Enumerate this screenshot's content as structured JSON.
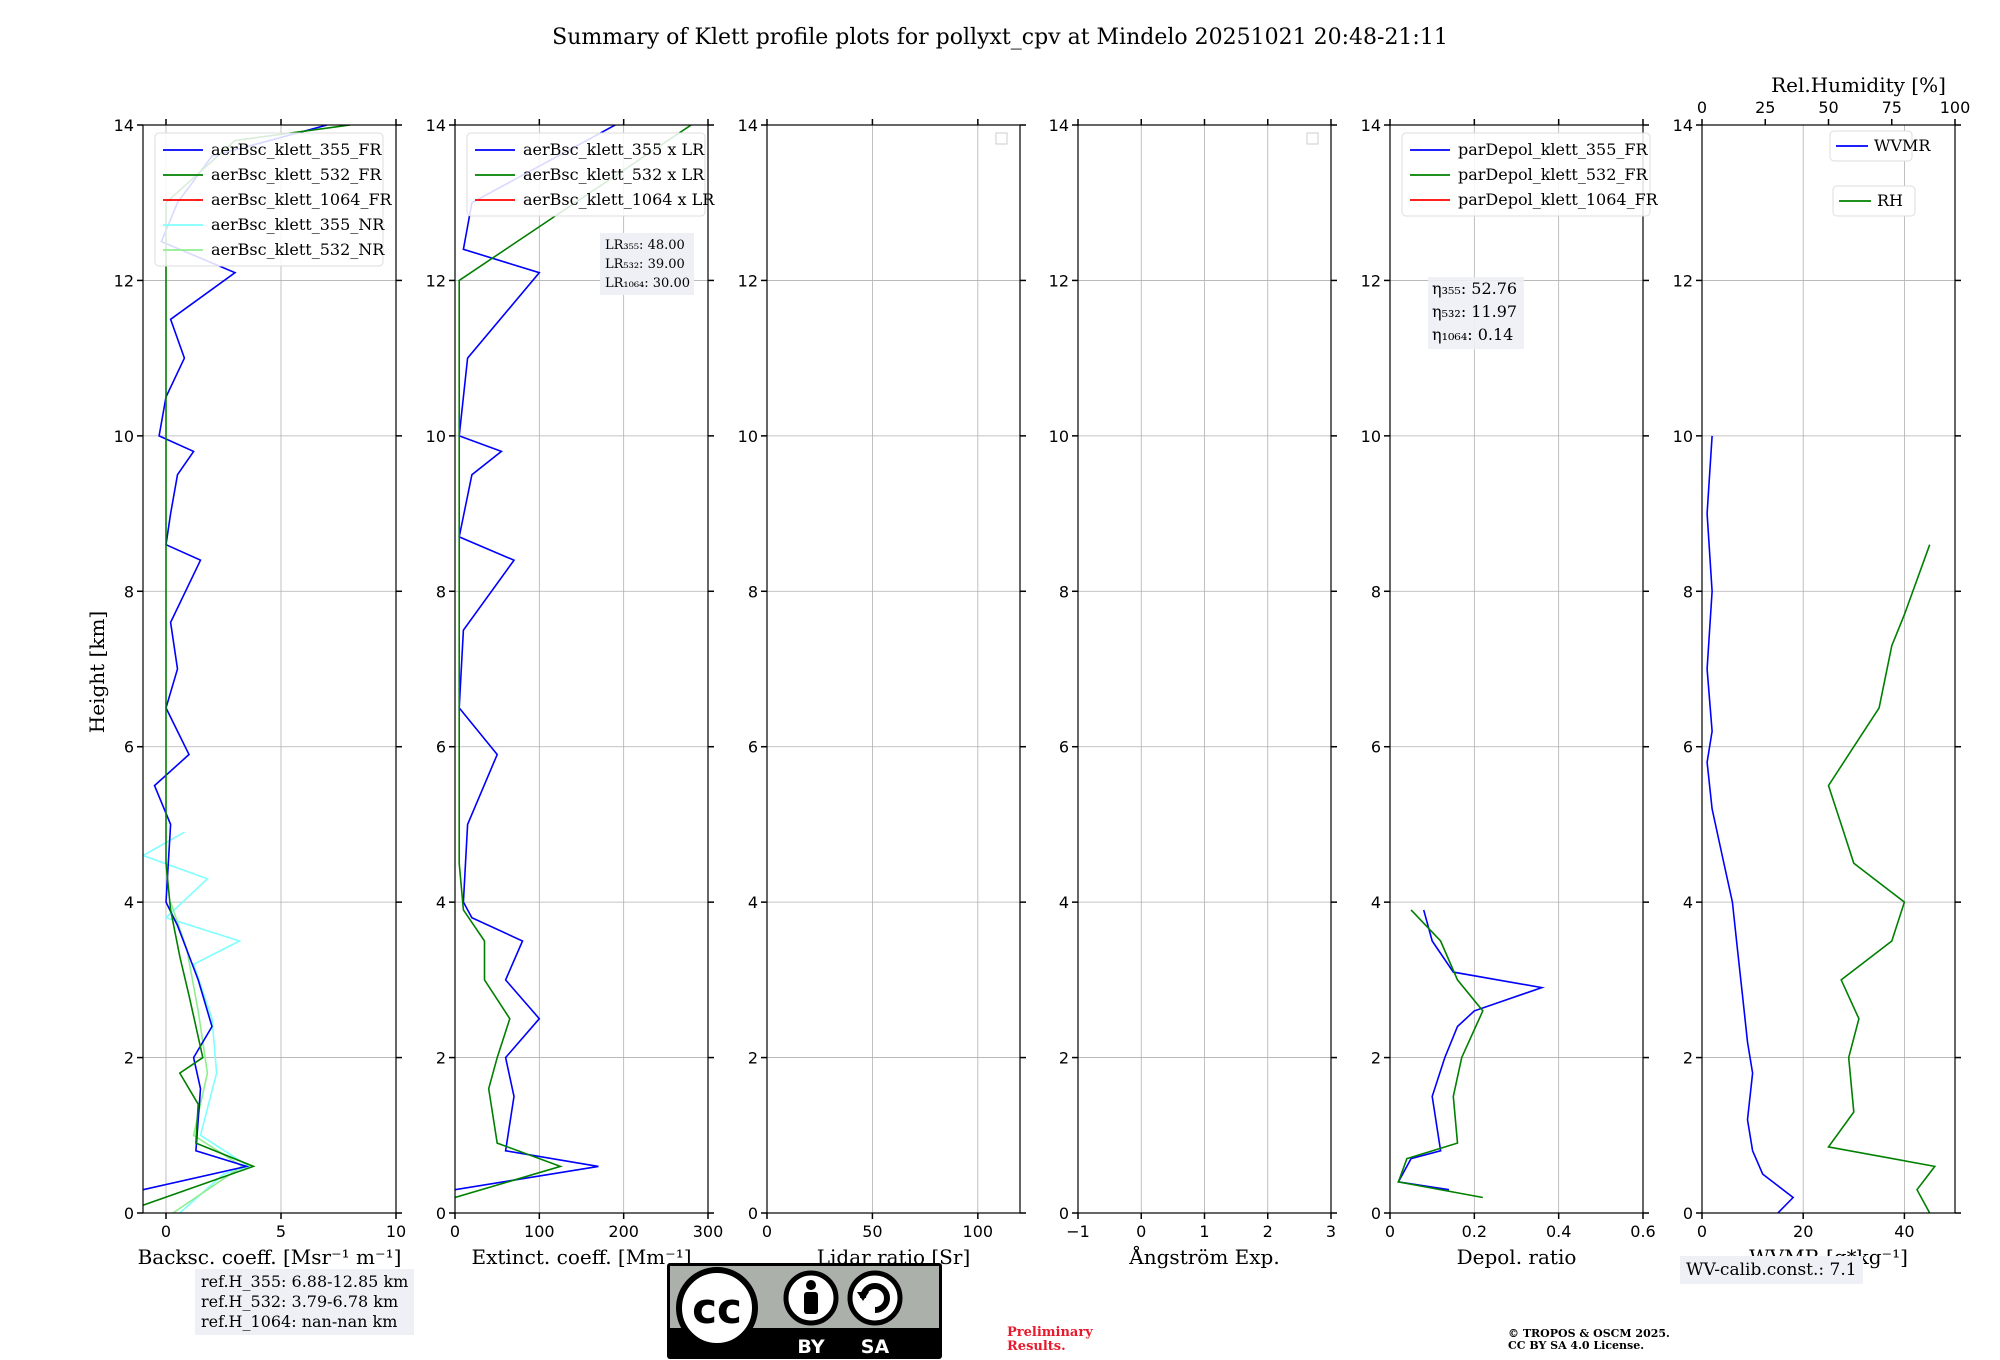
{
  "title": "Summary of Klett profile plots for pollyxt_cpv at Mindelo 20251021 20:48-21:11",
  "ylabel": "Height [km]",
  "colors": {
    "blue": "#0000ff",
    "green": "#008000",
    "red": "#ff0000",
    "cyan": "#7fffff",
    "lightgreen": "#90ee90"
  },
  "chart_data": [
    {
      "id": "backscatter",
      "type": "line",
      "xlabel": "Backsc. coeff. [Msr⁻¹ m⁻¹]",
      "xlim": [
        -1,
        10
      ],
      "ylim": [
        0,
        14
      ],
      "xticks": [
        0,
        5,
        10
      ],
      "yticks": [
        0,
        2,
        4,
        6,
        8,
        10,
        12,
        14
      ],
      "legend": [
        "aerBsc_klett_355_FR",
        "aerBsc_klett_532_FR",
        "aerBsc_klett_1064_FR",
        "aerBsc_klett_355_NR",
        "aerBsc_klett_532_NR"
      ],
      "series": [
        {
          "name": "aerBsc_klett_355_NR",
          "color": "cyan",
          "points": [
            [
              0.6,
              0.0
            ],
            [
              2.5,
              0.5
            ],
            [
              3.6,
              0.6
            ],
            [
              1.5,
              1.0
            ],
            [
              2.2,
              1.8
            ],
            [
              2.0,
              2.5
            ],
            [
              1.2,
              3.2
            ],
            [
              3.2,
              3.5
            ],
            [
              0.0,
              3.8
            ],
            [
              1.8,
              4.3
            ],
            [
              -1,
              4.6
            ],
            [
              0.8,
              4.9
            ]
          ]
        },
        {
          "name": "aerBsc_klett_532_NR",
          "color": "lightgreen",
          "points": [
            [
              0.3,
              0.0
            ],
            [
              2.3,
              0.4
            ],
            [
              3.3,
              0.6
            ],
            [
              1.2,
              1.0
            ],
            [
              1.8,
              1.8
            ],
            [
              1.4,
              2.6
            ],
            [
              0.9,
              3.4
            ],
            [
              0.2,
              4.0
            ]
          ]
        },
        {
          "name": "aerBsc_klett_355_FR",
          "color": "blue",
          "points": [
            [
              -1,
              0.3
            ],
            [
              3.5,
              0.6
            ],
            [
              1.3,
              0.8
            ],
            [
              1.5,
              1.6
            ],
            [
              1.2,
              2.0
            ],
            [
              2.0,
              2.4
            ],
            [
              1.4,
              3.0
            ],
            [
              0.5,
              3.7
            ],
            [
              0.0,
              4.0
            ],
            [
              0.2,
              5.0
            ],
            [
              -0.5,
              5.5
            ],
            [
              1.0,
              5.9
            ],
            [
              0.0,
              6.5
            ],
            [
              0.5,
              7.0
            ],
            [
              0.2,
              7.6
            ],
            [
              1.5,
              8.4
            ],
            [
              0.0,
              8.6
            ],
            [
              0.2,
              9.0
            ],
            [
              0.5,
              9.5
            ],
            [
              1.2,
              9.8
            ],
            [
              -0.3,
              10.0
            ],
            [
              0.0,
              10.5
            ],
            [
              0.8,
              11.0
            ],
            [
              0.2,
              11.5
            ],
            [
              3.0,
              12.1
            ],
            [
              -0.2,
              12.5
            ],
            [
              0.5,
              13.0
            ],
            [
              2.0,
              13.6
            ],
            [
              7.0,
              14.0
            ]
          ]
        },
        {
          "name": "aerBsc_klett_532_FR",
          "color": "green",
          "points": [
            [
              -1,
              0.1
            ],
            [
              3.8,
              0.6
            ],
            [
              1.3,
              0.9
            ],
            [
              1.4,
              1.4
            ],
            [
              0.6,
              1.8
            ],
            [
              1.6,
              2.0
            ],
            [
              1.0,
              2.8
            ],
            [
              0.6,
              3.3
            ],
            [
              0.2,
              3.9
            ],
            [
              0.0,
              4.5
            ],
            [
              0.0,
              6.0
            ],
            [
              0.0,
              8.0
            ],
            [
              0.0,
              10.0
            ],
            [
              0.0,
              12.0
            ],
            [
              0.0,
              13.0
            ],
            [
              3.0,
              13.8
            ],
            [
              8.0,
              14.0
            ]
          ]
        }
      ]
    },
    {
      "id": "extinction",
      "type": "line",
      "xlabel": "Extinct. coeff. [Mm⁻¹]",
      "xlim": [
        0,
        300
      ],
      "ylim": [
        0,
        14
      ],
      "xticks": [
        0,
        100,
        200,
        300
      ],
      "yticks": [
        0,
        2,
        4,
        6,
        8,
        10,
        12,
        14
      ],
      "legend": [
        "aerBsc_klett_355 x LR",
        "aerBsc_klett_532 x LR",
        "aerBsc_klett_1064 x LR"
      ],
      "lr_labels": [
        "LR₃₅₅: 48.00",
        "LR₅₃₂: 39.00",
        "LR₁₀₆₄: 30.00"
      ],
      "series": [
        {
          "name": "aerBsc_klett_355 x LR",
          "color": "blue",
          "points": [
            [
              0,
              0.3
            ],
            [
              170,
              0.6
            ],
            [
              60,
              0.8
            ],
            [
              70,
              1.5
            ],
            [
              60,
              2.0
            ],
            [
              100,
              2.5
            ],
            [
              60,
              3.0
            ],
            [
              80,
              3.5
            ],
            [
              20,
              3.8
            ],
            [
              10,
              4.0
            ],
            [
              15,
              5.0
            ],
            [
              50,
              5.9
            ],
            [
              5,
              6.5
            ],
            [
              10,
              7.5
            ],
            [
              70,
              8.4
            ],
            [
              5,
              8.7
            ],
            [
              20,
              9.5
            ],
            [
              55,
              9.8
            ],
            [
              5,
              10.0
            ],
            [
              15,
              11.0
            ],
            [
              100,
              12.1
            ],
            [
              10,
              12.4
            ],
            [
              20,
              13.0
            ],
            [
              190,
              14.0
            ]
          ]
        },
        {
          "name": "aerBsc_klett_532 x LR",
          "color": "green",
          "points": [
            [
              0,
              0.2
            ],
            [
              125,
              0.6
            ],
            [
              50,
              0.9
            ],
            [
              40,
              1.6
            ],
            [
              50,
              2.0
            ],
            [
              65,
              2.5
            ],
            [
              35,
              3.0
            ],
            [
              35,
              3.5
            ],
            [
              10,
              3.9
            ],
            [
              5,
              4.5
            ],
            [
              5,
              8.0
            ],
            [
              5,
              12.0
            ],
            [
              280,
              14.0
            ]
          ]
        }
      ]
    },
    {
      "id": "lidar-ratio",
      "type": "line",
      "xlabel": "Lidar ratio [Sr]",
      "xlim": [
        0,
        120
      ],
      "ylim": [
        0,
        14
      ],
      "xticks": [
        0,
        50,
        100
      ],
      "yticks": [
        0,
        2,
        4,
        6,
        8,
        10,
        12,
        14
      ],
      "series": []
    },
    {
      "id": "angstrom",
      "type": "line",
      "xlabel": "Ångström Exp.",
      "xlim": [
        -1,
        3
      ],
      "ylim": [
        0,
        14
      ],
      "xticks": [
        -1,
        0,
        1,
        2,
        3
      ],
      "yticks": [
        0,
        2,
        4,
        6,
        8,
        10,
        12,
        14
      ],
      "series": []
    },
    {
      "id": "depol",
      "type": "line",
      "xlabel": "Depol. ratio",
      "xlim": [
        0,
        0.6
      ],
      "ylim": [
        0,
        14
      ],
      "xticks": [
        0.0,
        0.2,
        0.4,
        0.6
      ],
      "yticks": [
        0,
        2,
        4,
        6,
        8,
        10,
        12,
        14
      ],
      "legend": [
        "parDepol_klett_355_FR",
        "parDepol_klett_532_FR",
        "parDepol_klett_1064_FR"
      ],
      "eta_labels": [
        "η₃₅₅: 52.76",
        "η₅₃₂: 11.97",
        "η₁₀₆₄: 0.14"
      ],
      "series": [
        {
          "name": "parDepol_klett_355_FR",
          "color": "blue",
          "points": [
            [
              0.14,
              0.3
            ],
            [
              0.02,
              0.4
            ],
            [
              0.05,
              0.7
            ],
            [
              0.12,
              0.8
            ],
            [
              0.1,
              1.5
            ],
            [
              0.13,
              2.0
            ],
            [
              0.16,
              2.4
            ],
            [
              0.2,
              2.6
            ],
            [
              0.36,
              2.9
            ],
            [
              0.15,
              3.1
            ],
            [
              0.1,
              3.5
            ],
            [
              0.08,
              3.9
            ]
          ]
        },
        {
          "name": "parDepol_klett_532_FR",
          "color": "green",
          "points": [
            [
              0.22,
              0.2
            ],
            [
              0.02,
              0.4
            ],
            [
              0.04,
              0.7
            ],
            [
              0.16,
              0.9
            ],
            [
              0.15,
              1.5
            ],
            [
              0.17,
              2.0
            ],
            [
              0.22,
              2.6
            ],
            [
              0.16,
              3.0
            ],
            [
              0.12,
              3.5
            ],
            [
              0.05,
              3.9
            ]
          ]
        }
      ]
    },
    {
      "id": "wvmr",
      "type": "line",
      "xlabel": "WVMR [g*kg⁻¹]",
      "x2label": "Rel.Humidity [%]",
      "xlim": [
        0,
        50
      ],
      "x2lim": [
        0,
        100
      ],
      "ylim": [
        0,
        14
      ],
      "xticks": [
        0,
        20,
        40
      ],
      "x2ticks": [
        0,
        25,
        50,
        75,
        100
      ],
      "yticks": [
        0,
        2,
        4,
        6,
        8,
        10,
        12,
        14
      ],
      "legend": [
        "WVMR",
        "RH"
      ],
      "series": [
        {
          "name": "WVMR",
          "color": "blue",
          "axis": "x",
          "points": [
            [
              15,
              0.0
            ],
            [
              18,
              0.2
            ],
            [
              12,
              0.5
            ],
            [
              10,
              0.8
            ],
            [
              9,
              1.2
            ],
            [
              10,
              1.8
            ],
            [
              9,
              2.2
            ],
            [
              8,
              2.8
            ],
            [
              7,
              3.4
            ],
            [
              6,
              4.0
            ],
            [
              4,
              4.6
            ],
            [
              2,
              5.2
            ],
            [
              1,
              5.8
            ],
            [
              2,
              6.2
            ],
            [
              1,
              7.0
            ],
            [
              2,
              8.0
            ],
            [
              1,
              9.0
            ],
            [
              2,
              10.0
            ]
          ]
        },
        {
          "name": "RH",
          "color": "green",
          "axis": "x2",
          "points": [
            [
              90,
              0.0
            ],
            [
              85,
              0.3
            ],
            [
              92,
              0.6
            ],
            [
              50,
              0.85
            ],
            [
              60,
              1.3
            ],
            [
              58,
              2.0
            ],
            [
              62,
              2.5
            ],
            [
              55,
              3.0
            ],
            [
              75,
              3.5
            ],
            [
              80,
              4.0
            ],
            [
              60,
              4.5
            ],
            [
              55,
              5.0
            ],
            [
              50,
              5.5
            ],
            [
              60,
              6.0
            ],
            [
              70,
              6.5
            ],
            [
              75,
              7.3
            ],
            [
              80,
              7.7
            ],
            [
              90,
              8.6
            ]
          ]
        }
      ]
    }
  ],
  "ref_heights": [
    "ref.H_355: 6.88-12.85 km",
    "ref.H_532: 3.79-6.78 km",
    "ref.H_1064: nan-nan km"
  ],
  "wv_calib": "WV-calib.const.: 7.1",
  "cc_badge": {
    "by": "BY",
    "sa": "SA",
    "cc": "cc"
  },
  "preliminary": [
    "Preliminary",
    "Results."
  ],
  "copyright": [
    "© TROPOS & OSCM 2025.",
    "CC BY SA 4.0 License."
  ]
}
